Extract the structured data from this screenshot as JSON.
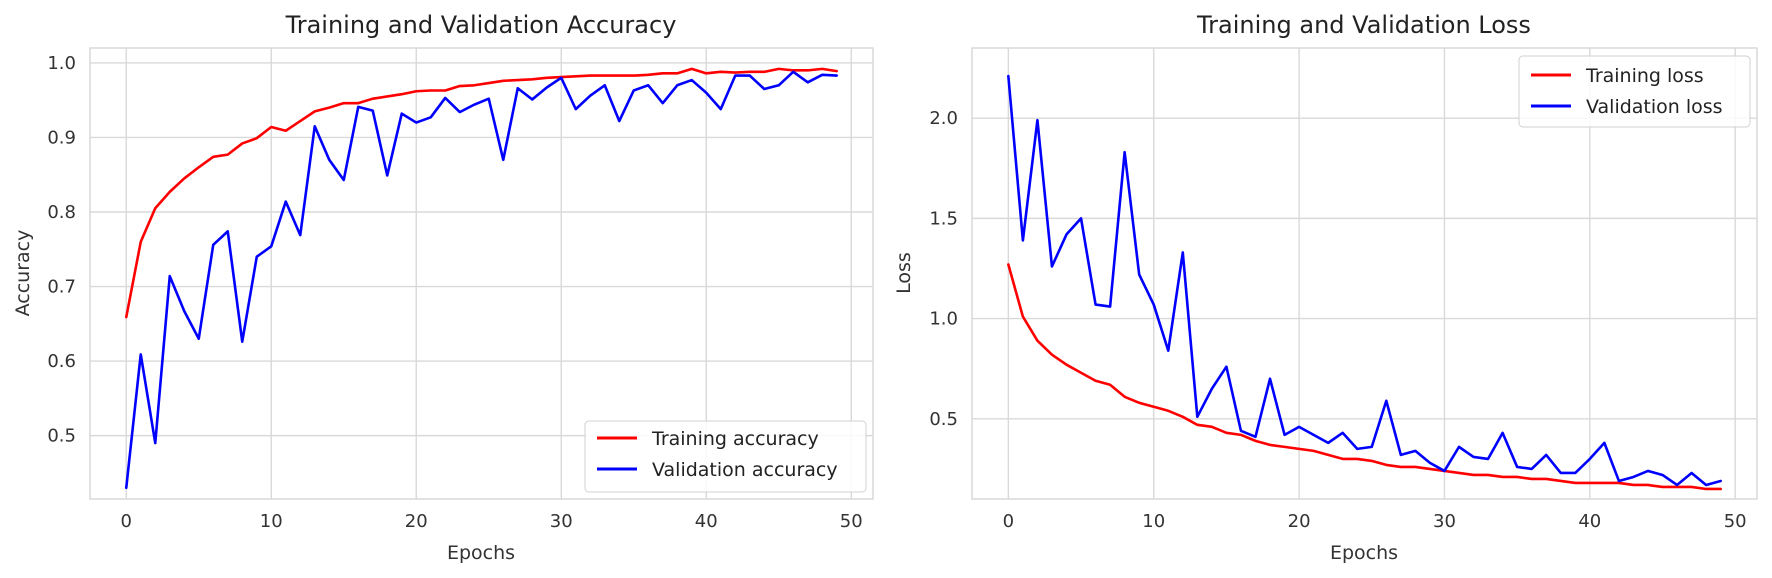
{
  "chart_data": [
    {
      "type": "line",
      "title": "Training and Validation Accuracy",
      "xlabel": "Epochs",
      "ylabel": "Accuracy",
      "xlim": [
        -2.5,
        51.5
      ],
      "ylim": [
        0.415,
        1.02
      ],
      "xticks": [
        0,
        10,
        20,
        30,
        40,
        50
      ],
      "yticks": [
        0.5,
        0.6,
        0.7,
        0.8,
        0.9,
        1.0
      ],
      "ytick_labels": [
        "0.5",
        "0.6",
        "0.7",
        "0.8",
        "0.9",
        "1.0"
      ],
      "grid": true,
      "legend_position": "lower-right",
      "series": [
        {
          "name": "Training accuracy",
          "color": "#ff0000",
          "x": [
            0,
            1,
            2,
            3,
            4,
            5,
            6,
            7,
            8,
            9,
            10,
            11,
            12,
            13,
            14,
            15,
            16,
            17,
            18,
            19,
            20,
            21,
            22,
            23,
            24,
            25,
            26,
            27,
            28,
            29,
            30,
            31,
            32,
            33,
            34,
            35,
            36,
            37,
            38,
            39,
            40,
            41,
            42,
            43,
            44,
            45,
            46,
            47,
            48,
            49
          ],
          "values": [
            0.659,
            0.76,
            0.805,
            0.827,
            0.845,
            0.86,
            0.874,
            0.877,
            0.892,
            0.899,
            0.914,
            0.909,
            0.922,
            0.935,
            0.94,
            0.946,
            0.946,
            0.952,
            0.955,
            0.958,
            0.962,
            0.963,
            0.963,
            0.969,
            0.97,
            0.973,
            0.976,
            0.977,
            0.978,
            0.98,
            0.981,
            0.982,
            0.983,
            0.983,
            0.983,
            0.983,
            0.984,
            0.986,
            0.986,
            0.992,
            0.986,
            0.988,
            0.987,
            0.988,
            0.988,
            0.992,
            0.99,
            0.99,
            0.992,
            0.989
          ]
        },
        {
          "name": "Validation accuracy",
          "color": "#0000ff",
          "x": [
            0,
            1,
            2,
            3,
            4,
            5,
            6,
            7,
            8,
            9,
            10,
            11,
            12,
            13,
            14,
            15,
            16,
            17,
            18,
            19,
            20,
            21,
            22,
            23,
            24,
            25,
            26,
            27,
            28,
            29,
            30,
            31,
            32,
            33,
            34,
            35,
            36,
            37,
            38,
            39,
            40,
            41,
            42,
            43,
            44,
            45,
            46,
            47,
            48,
            49
          ],
          "values": [
            0.43,
            0.609,
            0.49,
            0.714,
            0.667,
            0.63,
            0.756,
            0.774,
            0.626,
            0.74,
            0.754,
            0.814,
            0.769,
            0.915,
            0.87,
            0.843,
            0.941,
            0.936,
            0.849,
            0.932,
            0.92,
            0.927,
            0.953,
            0.934,
            0.944,
            0.952,
            0.87,
            0.966,
            0.951,
            0.967,
            0.98,
            0.938,
            0.956,
            0.97,
            0.922,
            0.963,
            0.97,
            0.946,
            0.97,
            0.977,
            0.96,
            0.938,
            0.983,
            0.983,
            0.965,
            0.97,
            0.988,
            0.974,
            0.984,
            0.983
          ]
        }
      ]
    },
    {
      "type": "line",
      "title": "Training and Validation Loss",
      "xlabel": "Epochs",
      "ylabel": "Loss",
      "xlim": [
        -2.5,
        51.5
      ],
      "ylim": [
        0.1,
        2.35
      ],
      "xticks": [
        0,
        10,
        20,
        30,
        40,
        50
      ],
      "yticks": [
        0.5,
        1.0,
        1.5,
        2.0
      ],
      "ytick_labels": [
        "0.5",
        "1.0",
        "1.5",
        "2.0"
      ],
      "grid": true,
      "legend_position": "upper-right",
      "series": [
        {
          "name": "Training loss",
          "color": "#ff0000",
          "x": [
            0,
            1,
            2,
            3,
            4,
            5,
            6,
            7,
            8,
            9,
            10,
            11,
            12,
            13,
            14,
            15,
            16,
            17,
            18,
            19,
            20,
            21,
            22,
            23,
            24,
            25,
            26,
            27,
            28,
            29,
            30,
            31,
            32,
            33,
            34,
            35,
            36,
            37,
            38,
            39,
            40,
            41,
            42,
            43,
            44,
            45,
            46,
            47,
            48,
            49
          ],
          "values": [
            1.27,
            1.01,
            0.89,
            0.82,
            0.77,
            0.73,
            0.69,
            0.67,
            0.61,
            0.58,
            0.56,
            0.54,
            0.51,
            0.47,
            0.46,
            0.43,
            0.42,
            0.39,
            0.37,
            0.36,
            0.35,
            0.34,
            0.32,
            0.3,
            0.3,
            0.29,
            0.27,
            0.26,
            0.26,
            0.25,
            0.24,
            0.23,
            0.22,
            0.22,
            0.21,
            0.21,
            0.2,
            0.2,
            0.19,
            0.18,
            0.18,
            0.18,
            0.18,
            0.17,
            0.17,
            0.16,
            0.16,
            0.16,
            0.15,
            0.15
          ]
        },
        {
          "name": "Validation loss",
          "color": "#0000ff",
          "x": [
            0,
            1,
            2,
            3,
            4,
            5,
            6,
            7,
            8,
            9,
            10,
            11,
            12,
            13,
            14,
            15,
            16,
            17,
            18,
            19,
            20,
            21,
            22,
            23,
            24,
            25,
            26,
            27,
            28,
            29,
            30,
            31,
            32,
            33,
            34,
            35,
            36,
            37,
            38,
            39,
            40,
            41,
            42,
            43,
            44,
            45,
            46,
            47,
            48,
            49
          ],
          "values": [
            2.21,
            1.39,
            1.99,
            1.26,
            1.42,
            1.5,
            1.07,
            1.06,
            1.83,
            1.22,
            1.07,
            0.84,
            1.33,
            0.51,
            0.65,
            0.76,
            0.44,
            0.41,
            0.7,
            0.42,
            0.46,
            0.42,
            0.38,
            0.43,
            0.35,
            0.36,
            0.59,
            0.32,
            0.34,
            0.28,
            0.24,
            0.36,
            0.31,
            0.3,
            0.43,
            0.26,
            0.25,
            0.32,
            0.23,
            0.23,
            0.3,
            0.38,
            0.19,
            0.21,
            0.24,
            0.22,
            0.17,
            0.23,
            0.17,
            0.19
          ]
        }
      ]
    }
  ]
}
